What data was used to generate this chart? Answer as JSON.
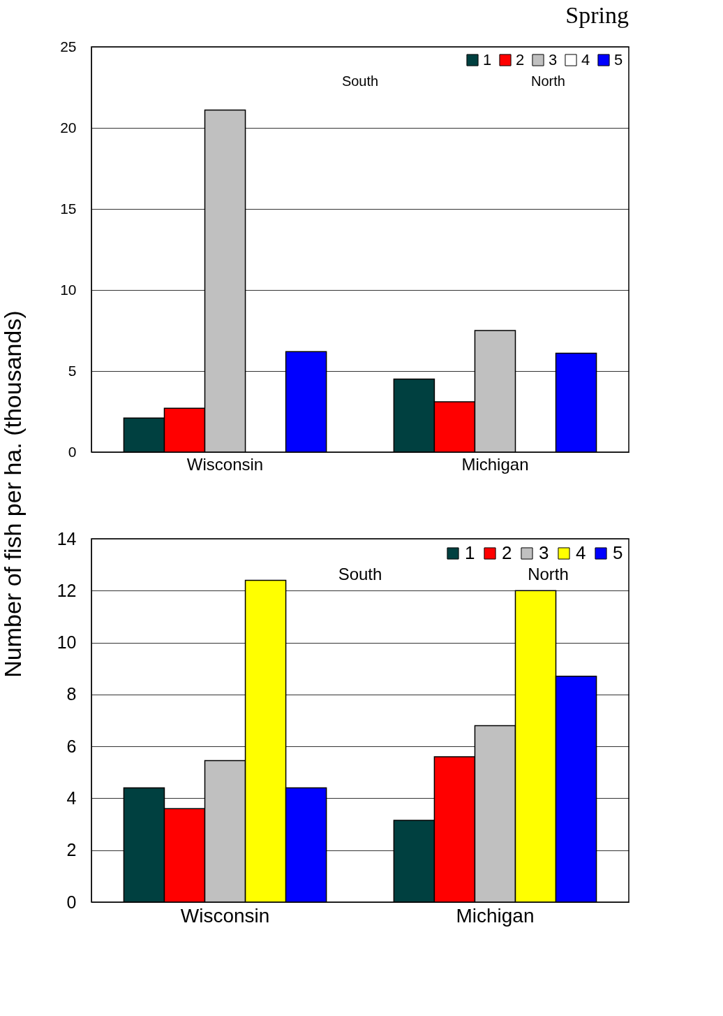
{
  "chart_data": [
    {
      "type": "bar",
      "title": "Spring",
      "ylabel": "Number of fish per ha. (thousands)",
      "categories": [
        "Wisconsin",
        "Michigan"
      ],
      "series": [
        {
          "name": "1",
          "color": "#004040",
          "values": [
            2.1,
            4.5
          ]
        },
        {
          "name": "2",
          "color": "#ff0000",
          "values": [
            2.7,
            3.1
          ]
        },
        {
          "name": "3",
          "color": "#c0c0c0",
          "values": [
            21.1,
            7.5
          ]
        },
        {
          "name": "4",
          "color": "#ffffff",
          "values": [
            0,
            0
          ]
        },
        {
          "name": "5",
          "color": "#0000ff",
          "values": [
            6.2,
            6.1
          ]
        }
      ],
      "ylim": [
        0,
        25
      ],
      "yticks": [
        0,
        5,
        10,
        15,
        20,
        25
      ],
      "grid": "y",
      "legend": "top right",
      "annotations": [
        "South",
        "North"
      ]
    },
    {
      "type": "bar",
      "categories": [
        "Wisconsin",
        "Michigan"
      ],
      "series": [
        {
          "name": "1",
          "color": "#004040",
          "values": [
            4.4,
            3.15
          ]
        },
        {
          "name": "2",
          "color": "#ff0000",
          "values": [
            3.6,
            5.6
          ]
        },
        {
          "name": "3",
          "color": "#c0c0c0",
          "values": [
            5.45,
            6.8
          ]
        },
        {
          "name": "4",
          "color": "#ffff00",
          "values": [
            12.4,
            12.0
          ]
        },
        {
          "name": "5",
          "color": "#0000ff",
          "values": [
            4.4,
            8.7
          ]
        }
      ],
      "ylim": [
        0,
        14
      ],
      "yticks": [
        0,
        2,
        4,
        6,
        8,
        10,
        12,
        14
      ],
      "grid": "y",
      "legend": "top right",
      "annotations": [
        "South",
        "North"
      ]
    }
  ]
}
